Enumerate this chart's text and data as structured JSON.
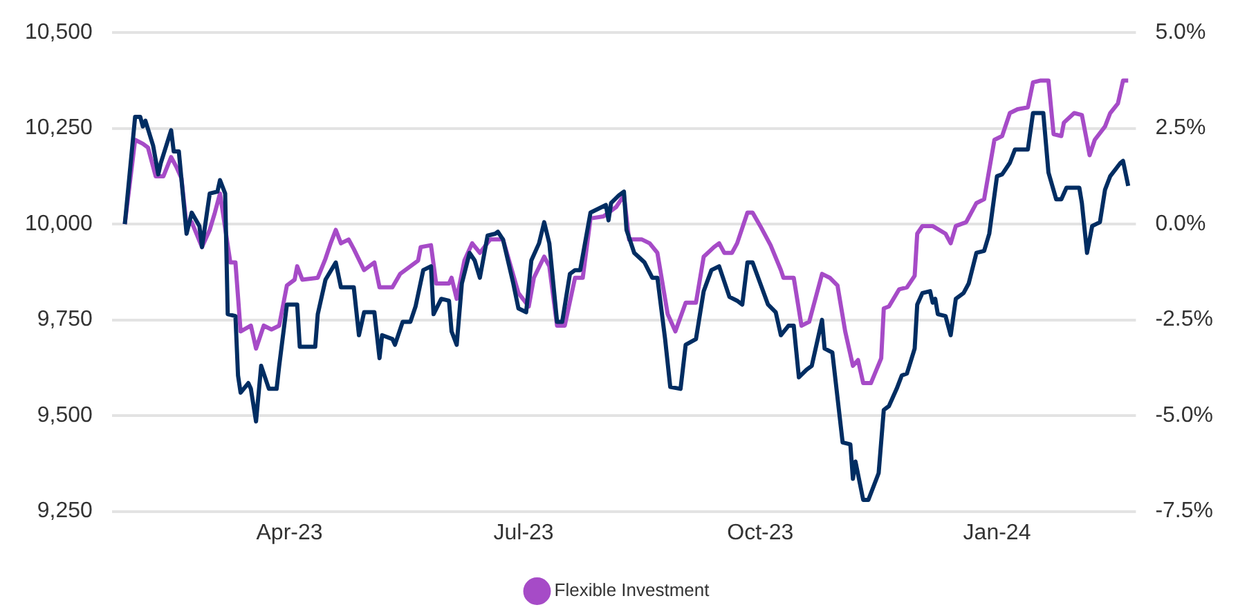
{
  "chart_data": {
    "type": "line",
    "legend": "bottom",
    "grid": "y",
    "marker": "none",
    "line_style": "solid",
    "xlim": [
      "2023-01-22",
      "2024-02-24"
    ],
    "xticks": [
      {
        "value": "2023-04-01",
        "label": "Apr-23"
      },
      {
        "value": "2023-07-01",
        "label": "Jul-23"
      },
      {
        "value": "2023-10-01",
        "label": "Oct-23"
      },
      {
        "value": "2024-01-01",
        "label": "Jan-24"
      }
    ],
    "ylim": [
      9250,
      10500
    ],
    "yticks": [
      {
        "value": 9250,
        "label": "9,250"
      },
      {
        "value": 9500,
        "label": "9,500"
      },
      {
        "value": 9750,
        "label": "9,750"
      },
      {
        "value": 10000,
        "label": "10,000"
      },
      {
        "value": 10250,
        "label": "10,250"
      },
      {
        "value": 10500,
        "label": "10,500"
      }
    ],
    "y2lim": [
      -7.5,
      5.0
    ],
    "y2ticks": [
      {
        "value": -7.5,
        "label": "-7.5%"
      },
      {
        "value": -5,
        "label": "-5.0%"
      },
      {
        "value": -2.5,
        "label": "-2.5%"
      },
      {
        "value": 0,
        "label": "0.0%"
      },
      {
        "value": 2.5,
        "label": "2.5%"
      },
      {
        "value": 5,
        "label": "5.0%"
      }
    ],
    "series": [
      {
        "color": "#002d62",
        "x": [
          "2023-01-27",
          "2023-01-31",
          "2023-02-02",
          "2023-02-03",
          "2023-02-04",
          "2023-02-07",
          "2023-02-09",
          "2023-02-10",
          "2023-02-14",
          "2023-02-15",
          "2023-02-17",
          "2023-02-20",
          "2023-02-22",
          "2023-02-25",
          "2023-02-26",
          "2023-03-01",
          "2023-03-04",
          "2023-03-05",
          "2023-03-07",
          "2023-03-08",
          "2023-03-11",
          "2023-03-12",
          "2023-03-13",
          "2023-03-16",
          "2023-03-17",
          "2023-03-19",
          "2023-03-21",
          "2023-03-24",
          "2023-03-27",
          "2023-03-28",
          "2023-03-31",
          "2023-04-04",
          "2023-04-05",
          "2023-04-11",
          "2023-04-12",
          "2023-04-15",
          "2023-04-19",
          "2023-04-21",
          "2023-04-26",
          "2023-04-28",
          "2023-04-30",
          "2023-05-04",
          "2023-05-06",
          "2023-05-07",
          "2023-05-11",
          "2023-05-12",
          "2023-05-15",
          "2023-05-18",
          "2023-05-20",
          "2023-05-23",
          "2023-05-26",
          "2023-05-27",
          "2023-05-30",
          "2023-06-02",
          "2023-06-03",
          "2023-06-05",
          "2023-06-07",
          "2023-06-10",
          "2023-06-12",
          "2023-06-14",
          "2023-06-17",
          "2023-06-20",
          "2023-06-21",
          "2023-06-23",
          "2023-06-27",
          "2023-06-29",
          "2023-07-02",
          "2023-07-04",
          "2023-07-07",
          "2023-07-09",
          "2023-07-11",
          "2023-07-14",
          "2023-07-16",
          "2023-07-19",
          "2023-07-21",
          "2023-07-23",
          "2023-07-27",
          "2023-07-30",
          "2023-08-02",
          "2023-08-03",
          "2023-08-04",
          "2023-08-07",
          "2023-08-09",
          "2023-08-10",
          "2023-08-13",
          "2023-08-17",
          "2023-08-20",
          "2023-08-22",
          "2023-08-25",
          "2023-08-27",
          "2023-08-31",
          "2023-09-02",
          "2023-09-06",
          "2023-09-09",
          "2023-09-12",
          "2023-09-15",
          "2023-09-19",
          "2023-09-22",
          "2023-09-24",
          "2023-09-26",
          "2023-09-28",
          "2023-10-01",
          "2023-10-04",
          "2023-10-07",
          "2023-10-09",
          "2023-10-12",
          "2023-10-14",
          "2023-10-16",
          "2023-10-19",
          "2023-10-21",
          "2023-10-25",
          "2023-10-26",
          "2023-10-29",
          "2023-11-02",
          "2023-11-05",
          "2023-11-06",
          "2023-11-07",
          "2023-11-10",
          "2023-11-12",
          "2023-11-16",
          "2023-11-18",
          "2023-11-20",
          "2023-11-23",
          "2023-11-25",
          "2023-11-27",
          "2023-11-30",
          "2023-12-01",
          "2023-12-03",
          "2023-12-06",
          "2023-12-07",
          "2023-12-08",
          "2023-12-09",
          "2023-12-12",
          "2023-12-14",
          "2023-12-16",
          "2023-12-19",
          "2023-12-21",
          "2023-12-24",
          "2023-12-27",
          "2023-12-29",
          "2024-01-01",
          "2024-01-03",
          "2024-01-06",
          "2024-01-08",
          "2024-01-13",
          "2024-01-15",
          "2024-01-19",
          "2024-01-21",
          "2024-01-24",
          "2024-01-26",
          "2024-01-28",
          "2024-01-30",
          "2024-02-02",
          "2024-02-03",
          "2024-02-05",
          "2024-02-07",
          "2024-02-10",
          "2024-02-12",
          "2024-02-14",
          "2024-02-18",
          "2024-02-19",
          "2024-02-21"
        ],
        "values": [
          10000,
          10280,
          10280,
          10255,
          10270,
          10205,
          10130,
          10160,
          10245,
          10190,
          10190,
          9975,
          10030,
          9995,
          9940,
          10080,
          10085,
          10115,
          10080,
          9765,
          9760,
          9605,
          9560,
          9585,
          9570,
          9485,
          9630,
          9570,
          9570,
          9630,
          9790,
          9790,
          9680,
          9680,
          9765,
          9855,
          9900,
          9835,
          9835,
          9710,
          9770,
          9770,
          9650,
          9710,
          9700,
          9685,
          9745,
          9745,
          9785,
          9880,
          9890,
          9765,
          9805,
          9800,
          9720,
          9685,
          9845,
          9925,
          9905,
          9860,
          9970,
          9975,
          9980,
          9960,
          9845,
          9780,
          9770,
          9905,
          9950,
          10005,
          9950,
          9745,
          9745,
          9870,
          9880,
          9880,
          10030,
          10040,
          10050,
          10010,
          10055,
          10075,
          10085,
          9985,
          9925,
          9900,
          9860,
          9860,
          9700,
          9575,
          9570,
          9685,
          9700,
          9825,
          9880,
          9890,
          9810,
          9800,
          9790,
          9900,
          9900,
          9845,
          9790,
          9770,
          9710,
          9735,
          9735,
          9600,
          9620,
          9630,
          9750,
          9675,
          9665,
          9430,
          9425,
          9335,
          9380,
          9280,
          9280,
          9350,
          9515,
          9525,
          9570,
          9605,
          9610,
          9675,
          9790,
          9820,
          9825,
          9795,
          9805,
          9765,
          9760,
          9710,
          9805,
          9820,
          9845,
          9925,
          9930,
          9975,
          10125,
          10130,
          10160,
          10195,
          10195,
          10290,
          10290,
          10135,
          10065,
          10065,
          10095,
          10095,
          10095,
          10055,
          9925,
          9995,
          10005,
          10090,
          10125,
          10160,
          10165,
          10100
        ]
      },
      {
        "name": "Flexible Investment",
        "color": "#a64bc7",
        "x": [
          "2023-01-27",
          "2023-01-31",
          "2023-02-03",
          "2023-02-05",
          "2023-02-08",
          "2023-02-11",
          "2023-02-14",
          "2023-02-16",
          "2023-02-18",
          "2023-02-20",
          "2023-02-22",
          "2023-02-26",
          "2023-03-01",
          "2023-03-03",
          "2023-03-05",
          "2023-03-09",
          "2023-03-11",
          "2023-03-13",
          "2023-03-17",
          "2023-03-19",
          "2023-03-22",
          "2023-03-25",
          "2023-03-28",
          "2023-03-31",
          "2023-04-03",
          "2023-04-04",
          "2023-04-06",
          "2023-04-12",
          "2023-04-15",
          "2023-04-17",
          "2023-04-19",
          "2023-04-21",
          "2023-04-24",
          "2023-04-26",
          "2023-04-30",
          "2023-05-04",
          "2023-05-06",
          "2023-05-11",
          "2023-05-14",
          "2023-05-18",
          "2023-05-21",
          "2023-05-22",
          "2023-05-26",
          "2023-05-28",
          "2023-06-02",
          "2023-06-03",
          "2023-06-05",
          "2023-06-08",
          "2023-06-11",
          "2023-06-14",
          "2023-06-18",
          "2023-06-22",
          "2023-06-23",
          "2023-06-26",
          "2023-06-29",
          "2023-07-03",
          "2023-07-05",
          "2023-07-09",
          "2023-07-11",
          "2023-07-14",
          "2023-07-17",
          "2023-07-21",
          "2023-07-24",
          "2023-07-27",
          "2023-08-01",
          "2023-08-03",
          "2023-08-06",
          "2023-08-09",
          "2023-08-11",
          "2023-08-16",
          "2023-08-19",
          "2023-08-22",
          "2023-08-26",
          "2023-08-29",
          "2023-09-02",
          "2023-09-06",
          "2023-09-09",
          "2023-09-13",
          "2023-09-15",
          "2023-09-17",
          "2023-09-20",
          "2023-09-22",
          "2023-09-26",
          "2023-09-28",
          "2023-10-01",
          "2023-10-05",
          "2023-10-09",
          "2023-10-10",
          "2023-10-14",
          "2023-10-17",
          "2023-10-20",
          "2023-10-25",
          "2023-10-28",
          "2023-10-31",
          "2023-11-03",
          "2023-11-06",
          "2023-11-08",
          "2023-11-10",
          "2023-11-13",
          "2023-11-17",
          "2023-11-18",
          "2023-11-20",
          "2023-11-24",
          "2023-11-27",
          "2023-11-30",
          "2023-12-01",
          "2023-12-03",
          "2023-12-07",
          "2023-12-12",
          "2023-12-14",
          "2023-12-16",
          "2023-12-20",
          "2023-12-24",
          "2023-12-27",
          "2023-12-31",
          "2024-01-03",
          "2024-01-06",
          "2024-01-09",
          "2024-01-13",
          "2024-01-15",
          "2024-01-18",
          "2024-01-21",
          "2024-01-23",
          "2024-01-26",
          "2024-01-27",
          "2024-01-31",
          "2024-02-03",
          "2024-02-06",
          "2024-02-08",
          "2024-02-12",
          "2024-02-14",
          "2024-02-17",
          "2024-02-19",
          "2024-02-21"
        ],
        "values": [
          10000,
          10220,
          10210,
          10200,
          10125,
          10125,
          10175,
          10150,
          10120,
          9995,
          10005,
          9940,
          9985,
          10030,
          10080,
          9900,
          9900,
          9720,
          9735,
          9675,
          9735,
          9725,
          9735,
          9840,
          9855,
          9890,
          9855,
          9860,
          9910,
          9950,
          9985,
          9950,
          9960,
          9935,
          9880,
          9900,
          9835,
          9835,
          9870,
          9890,
          9905,
          9940,
          9945,
          9845,
          9845,
          9860,
          9805,
          9905,
          9950,
          9925,
          9960,
          9960,
          9960,
          9890,
          9820,
          9785,
          9860,
          9915,
          9890,
          9735,
          9735,
          9860,
          9860,
          10015,
          10020,
          10030,
          10045,
          10075,
          9960,
          9960,
          9950,
          9925,
          9765,
          9720,
          9795,
          9795,
          9915,
          9940,
          9950,
          9925,
          9925,
          9950,
          10030,
          10030,
          9995,
          9945,
          9880,
          9860,
          9860,
          9735,
          9745,
          9870,
          9860,
          9840,
          9720,
          9630,
          9645,
          9585,
          9585,
          9650,
          9780,
          9785,
          9830,
          9835,
          9865,
          9975,
          9995,
          9995,
          9975,
          9950,
          9995,
          10005,
          10055,
          10065,
          10220,
          10230,
          10290,
          10300,
          10305,
          10370,
          10375,
          10375,
          10235,
          10230,
          10265,
          10290,
          10285,
          10180,
          10220,
          10255,
          10290,
          10315,
          10375,
          10375
        ]
      }
    ]
  }
}
